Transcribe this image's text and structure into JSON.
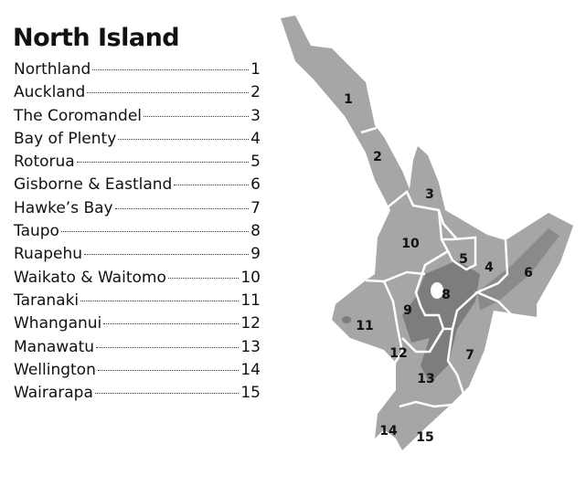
{
  "title": "North Island",
  "regions": [
    {
      "name": "Northland",
      "page": "1"
    },
    {
      "name": "Auckland",
      "page": "2"
    },
    {
      "name": "The Coromandel",
      "page": "3"
    },
    {
      "name": "Bay of Plenty",
      "page": "4"
    },
    {
      "name": "Rotorua",
      "page": "5"
    },
    {
      "name": "Gisborne & Eastland",
      "page": "6"
    },
    {
      "name": "Hawke’s Bay",
      "page": "7"
    },
    {
      "name": "Taupo",
      "page": "8"
    },
    {
      "name": "Ruapehu",
      "page": "9"
    },
    {
      "name": "Waikato & Waitomo",
      "page": "10"
    },
    {
      "name": "Taranaki",
      "page": "11"
    },
    {
      "name": "Whanganui",
      "page": "12"
    },
    {
      "name": "Manawatu",
      "page": "13"
    },
    {
      "name": "Wellington",
      "page": "14"
    },
    {
      "name": "Wairarapa",
      "page": "15"
    }
  ],
  "colors": {
    "land": "#a6a6a6",
    "mountains": "#7d7d7d",
    "borders": "#ffffff"
  }
}
